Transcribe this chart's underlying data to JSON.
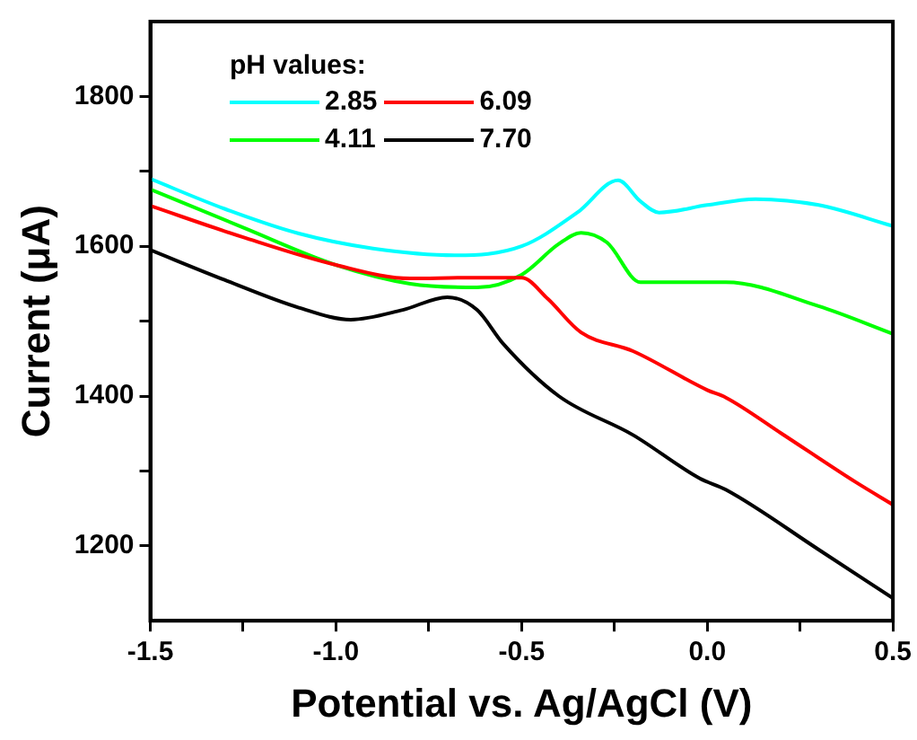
{
  "chart_data": {
    "type": "line",
    "xlabel": "Potential vs. Ag/AgCl (V)",
    "ylabel": "Current (μA)",
    "legend_title": "pH values:",
    "legend": "top left",
    "grid": false,
    "marker": "none",
    "line_style": "solid",
    "xlim": [
      -1.5,
      0.5
    ],
    "xticks": [
      -1.5,
      {
        "value": -1.25,
        "label": null
      },
      "-1.0",
      {
        "value": -0.75,
        "label": null
      },
      {
        "value": -0.5,
        "label": "-0.5"
      },
      {
        "value": -0.25,
        "label": null
      },
      {
        "value": 0,
        "label": "0.0"
      },
      {
        "value": 0.25,
        "label": null
      },
      0.5
    ],
    "ylim": [
      1100,
      1900
    ],
    "yticks": [
      1200,
      {
        "value": 1300,
        "label": null
      },
      1400,
      {
        "value": 1500,
        "label": null
      },
      1600,
      {
        "value": 1700,
        "label": null
      },
      1800
    ],
    "series": [
      {
        "name": "2.85",
        "color": "#00ffff",
        "x": [
          -1.5,
          -1.3,
          -1.1,
          -0.9,
          -0.68,
          -0.5,
          -0.35,
          -0.24,
          -0.18,
          -0.13,
          0,
          0.13,
          0.3,
          0.5
        ],
        "values": [
          1690,
          1650,
          1617,
          1597,
          1588,
          1600,
          1645,
          1688,
          1660,
          1645,
          1655,
          1663,
          1655,
          1627
        ]
      },
      {
        "name": "6.09",
        "color": "#ff0000",
        "x": [
          -1.5,
          -1.25,
          -1.0,
          -0.8,
          -0.65,
          -0.5,
          -0.43,
          -0.34,
          -0.2,
          0,
          0.05,
          0.2,
          0.4,
          0.5
        ],
        "values": [
          1654,
          1612,
          1575,
          1557,
          1558,
          1558,
          1530,
          1485,
          1460,
          1408,
          1398,
          1350,
          1285,
          1255
        ]
      },
      {
        "name": "4.11",
        "color": "#00ff00",
        "x": [
          -1.5,
          -1.25,
          -1.0,
          -0.8,
          -0.62,
          -0.5,
          -0.4,
          -0.34,
          -0.27,
          -0.18,
          0,
          0.05,
          0.3,
          0.5
        ],
        "values": [
          1676,
          1625,
          1575,
          1550,
          1545,
          1562,
          1603,
          1618,
          1605,
          1552,
          1552,
          1552,
          1520,
          1483
        ]
      },
      {
        "name": "7.70",
        "color": "#000000",
        "x": [
          -1.5,
          -1.3,
          -1.1,
          -0.96,
          -0.82,
          -0.7,
          -0.62,
          -0.55,
          -0.4,
          -0.2,
          -0.02,
          0.05,
          0.3,
          0.5
        ],
        "values": [
          1595,
          1555,
          1518,
          1502,
          1515,
          1532,
          1515,
          1470,
          1400,
          1348,
          1290,
          1275,
          1195,
          1130
        ]
      }
    ]
  }
}
